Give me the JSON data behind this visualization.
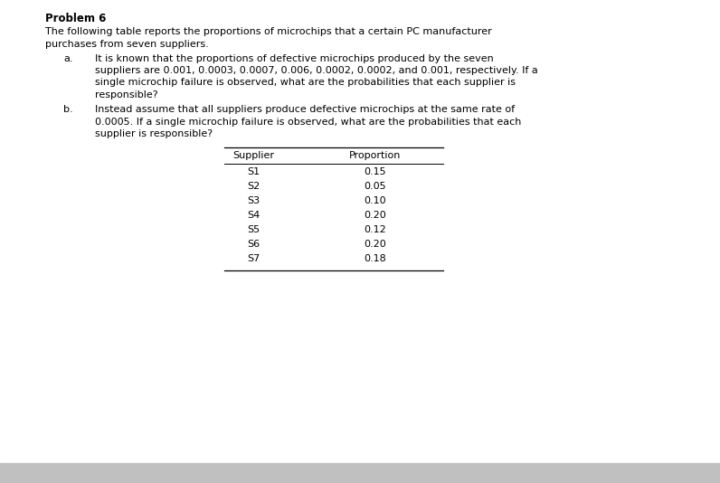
{
  "title": "Problem 6",
  "intro_line1": "The following table reports the proportions of microchips that a certain PC manufacturer",
  "intro_line2": "purchases from seven suppliers.",
  "item_a_label": "a.",
  "item_a_line1": "It is known that the proportions of defective microchips produced by the seven",
  "item_a_line2": "suppliers are 0.001, 0.0003, 0.0007, 0.006, 0.0002, 0.0002, and 0.001, respectively. If a",
  "item_a_line3": "single microchip failure is observed, what are the probabilities that each supplier is",
  "item_a_line4": "responsible?",
  "item_b_label": "b.",
  "item_b_line1": "Instead assume that all suppliers produce defective microchips at the same rate of",
  "item_b_line2": "0.0005. If a single microchip failure is observed, what are the probabilities that each",
  "item_b_line3": "supplier is responsible?",
  "table_header": [
    "Supplier",
    "Proportion"
  ],
  "table_data": [
    [
      "S1",
      "0.15"
    ],
    [
      "S2",
      "0.05"
    ],
    [
      "S3",
      "0.10"
    ],
    [
      "S4",
      "0.20"
    ],
    [
      "S5",
      "0.12"
    ],
    [
      "S6",
      "0.20"
    ],
    [
      "S7",
      "0.18"
    ]
  ],
  "bg_color": "#ffffff",
  "footer_color": "#c0c0c0",
  "text_color": "#000000",
  "font_size_title": 8.5,
  "font_size_body": 8.0,
  "font_size_table": 8.0
}
